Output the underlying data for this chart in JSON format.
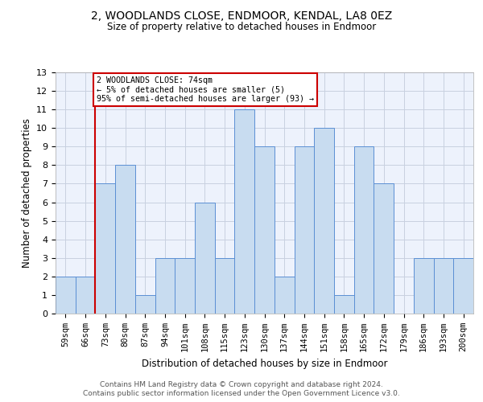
{
  "title1": "2, WOODLANDS CLOSE, ENDMOOR, KENDAL, LA8 0EZ",
  "title2": "Size of property relative to detached houses in Endmoor",
  "xlabel": "Distribution of detached houses by size in Endmoor",
  "ylabel": "Number of detached properties",
  "categories": [
    "59sqm",
    "66sqm",
    "73sqm",
    "80sqm",
    "87sqm",
    "94sqm",
    "101sqm",
    "108sqm",
    "115sqm",
    "123sqm",
    "130sqm",
    "137sqm",
    "144sqm",
    "151sqm",
    "158sqm",
    "165sqm",
    "172sqm",
    "179sqm",
    "186sqm",
    "193sqm",
    "200sqm"
  ],
  "values": [
    2,
    2,
    7,
    8,
    1,
    3,
    3,
    6,
    3,
    11,
    9,
    2,
    9,
    10,
    1,
    9,
    7,
    0,
    3,
    3,
    3
  ],
  "bar_color": "#c8dcf0",
  "bar_edge_color": "#5b8fd4",
  "annotation_box_color": "#ffffff",
  "annotation_border_color": "#cc0000",
  "vline_color": "#cc0000",
  "vline_x": 1.5,
  "annotation_line1": "2 WOODLANDS CLOSE: 74sqm",
  "annotation_line2": "← 5% of detached houses are smaller (5)",
  "annotation_line3": "95% of semi-detached houses are larger (93) →",
  "ylim": [
    0,
    13
  ],
  "yticks": [
    0,
    1,
    2,
    3,
    4,
    5,
    6,
    7,
    8,
    9,
    10,
    11,
    12,
    13
  ],
  "grid_color": "#c8d0e0",
  "bg_color": "#edf2fc",
  "footer1": "Contains HM Land Registry data © Crown copyright and database right 2024.",
  "footer2": "Contains public sector information licensed under the Open Government Licence v3.0."
}
